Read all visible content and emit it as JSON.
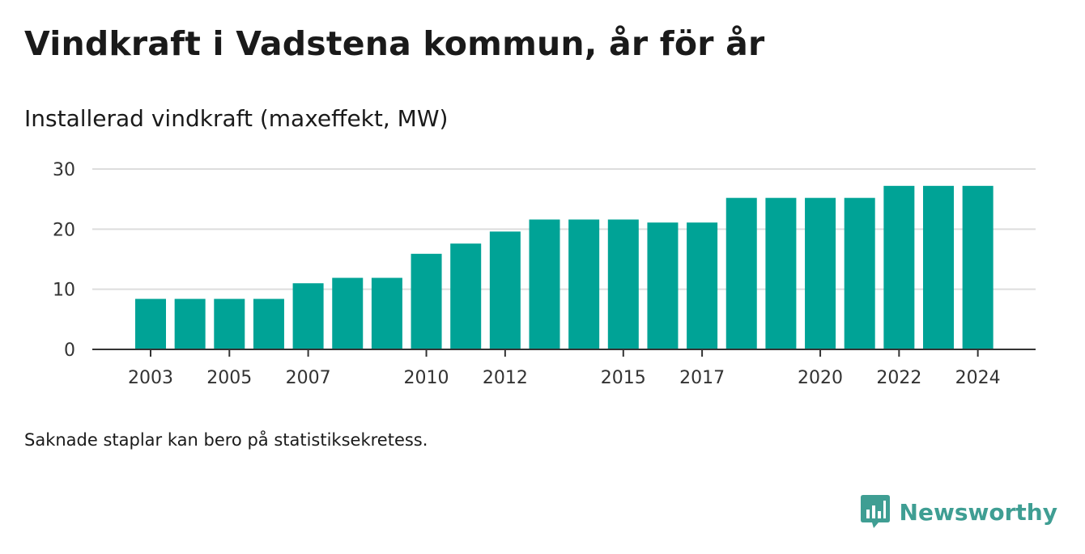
{
  "title": "Vindkraft i Vadstena kommun, år för år",
  "subtitle": "Installerad vindkraft (maxeffekt, MW)",
  "note": "Saknade staplar kan bero på statistiksekretess.",
  "brand": {
    "name": "Newsworthy",
    "icon": "newsworthy-logo-icon",
    "color": "#3f9e93"
  },
  "colors": {
    "bar": "#00a396",
    "grid": "#dddddd",
    "axis": "#333333"
  },
  "chart_data": {
    "type": "bar",
    "categories": [
      "2003",
      "2004",
      "2005",
      "2006",
      "2007",
      "2008",
      "2009",
      "2010",
      "2011",
      "2012",
      "2013",
      "2014",
      "2015",
      "2016",
      "2017",
      "2018",
      "2019",
      "2020",
      "2021",
      "2022",
      "2023",
      "2024"
    ],
    "values": [
      8.4,
      8.4,
      8.4,
      8.4,
      11,
      11.9,
      11.9,
      15.9,
      17.6,
      19.6,
      21.6,
      21.6,
      21.6,
      21.1,
      21.1,
      25.2,
      25.2,
      25.2,
      25.2,
      27.2,
      27.2,
      27.2
    ],
    "x_tick_labels": [
      "2003",
      "2005",
      "2007",
      "2010",
      "2012",
      "2015",
      "2017",
      "2020",
      "2022",
      "2024"
    ],
    "y_ticks": [
      0,
      10,
      20,
      30
    ],
    "ylim": [
      0,
      30
    ],
    "grid": true,
    "title": "Vindkraft i Vadstena kommun, år för år",
    "subtitle": "Installerad vindkraft (maxeffekt, MW)",
    "xlabel": "",
    "ylabel": ""
  }
}
